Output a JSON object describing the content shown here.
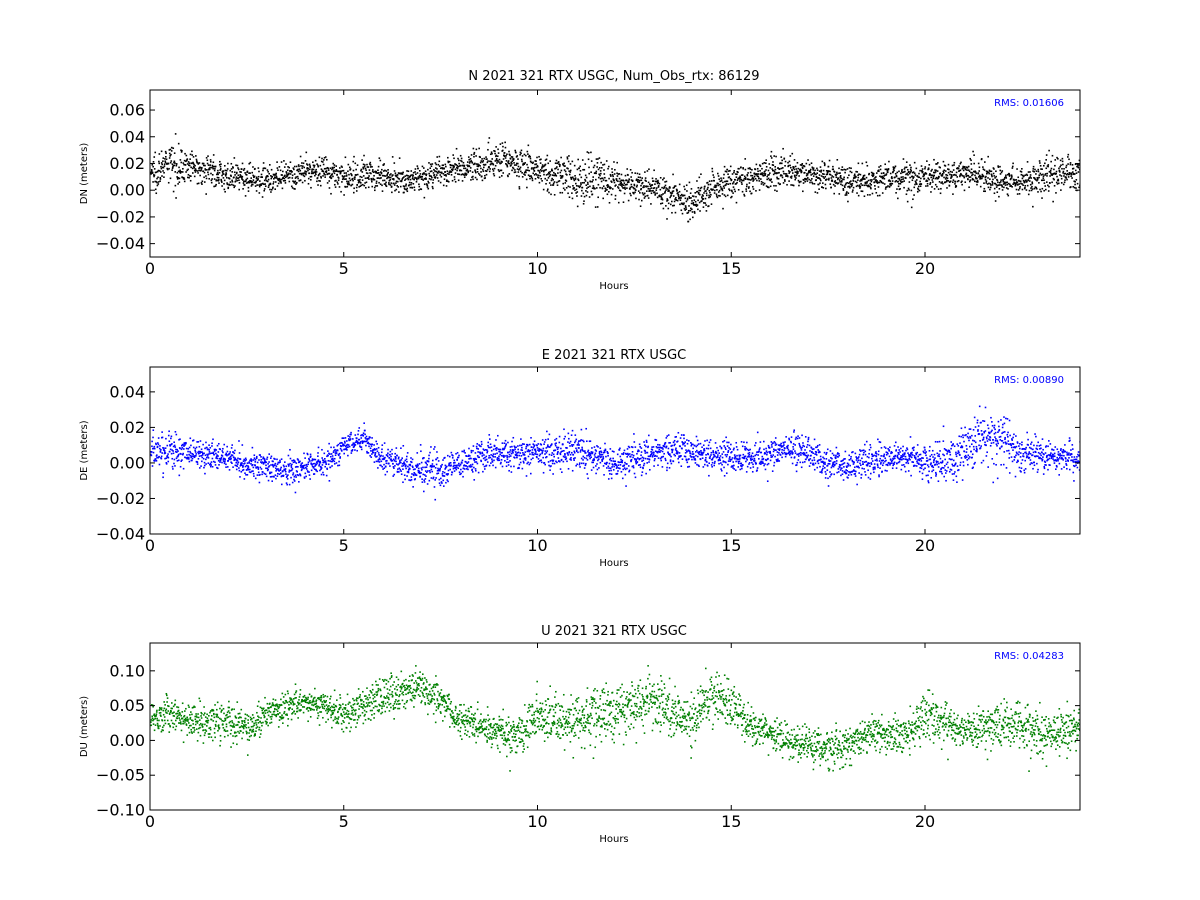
{
  "chart_data": [
    {
      "type": "scatter",
      "title": "N 2021 321 RTX  USGC, Num_Obs_rtx: 86129",
      "xlabel": "Hours",
      "ylabel": "DN (meters)",
      "xlim": [
        0,
        24
      ],
      "ylim": [
        -0.05,
        0.075
      ],
      "xticks": [
        0,
        5,
        10,
        15,
        20
      ],
      "yticks": [
        -0.04,
        -0.02,
        0.0,
        0.02,
        0.04,
        0.06
      ],
      "ytick_labels": [
        "−0.04",
        "−0.02",
        "0.00",
        "0.02",
        "0.04",
        "0.06"
      ],
      "annotation": "RMS:  0.01606",
      "color": "#000000",
      "series": [
        {
          "x": [
            0,
            0.5,
            1,
            1.5,
            2,
            2.5,
            3,
            3.5,
            4,
            4.5,
            5,
            5.5,
            6,
            6.5,
            7,
            7.5,
            8,
            8.5,
            9,
            9.5,
            10,
            10.5,
            11,
            11.5,
            12,
            12.5,
            13,
            13.5,
            14,
            14.5,
            15,
            15.5,
            16,
            16.5,
            17,
            17.5,
            18,
            18.5,
            19,
            19.5,
            20,
            20.5,
            21,
            21.5,
            22,
            22.5,
            23,
            23.5,
            24
          ],
          "y": [
            0.014,
            0.02,
            0.018,
            0.016,
            0.01,
            0.01,
            0.009,
            0.01,
            0.014,
            0.016,
            0.009,
            0.012,
            0.012,
            0.008,
            0.01,
            0.014,
            0.016,
            0.02,
            0.024,
            0.02,
            0.016,
            0.012,
            0.008,
            0.01,
            0.006,
            0.004,
            0.002,
            -0.004,
            -0.008,
            0.002,
            0.008,
            0.01,
            0.014,
            0.014,
            0.012,
            0.01,
            0.008,
            0.006,
            0.01,
            0.008,
            0.01,
            0.012,
            0.014,
            0.01,
            0.008,
            0.006,
            0.012,
            0.014,
            0.012
          ],
          "spread": [
            0.012,
            0.014,
            0.01,
            0.01,
            0.009,
            0.009,
            0.009,
            0.009,
            0.01,
            0.01,
            0.01,
            0.01,
            0.01,
            0.009,
            0.009,
            0.01,
            0.01,
            0.012,
            0.012,
            0.012,
            0.012,
            0.013,
            0.018,
            0.016,
            0.012,
            0.011,
            0.011,
            0.012,
            0.012,
            0.011,
            0.011,
            0.01,
            0.011,
            0.011,
            0.01,
            0.01,
            0.011,
            0.011,
            0.013,
            0.012,
            0.012,
            0.01,
            0.011,
            0.011,
            0.01,
            0.01,
            0.013,
            0.013,
            0.012
          ]
        }
      ]
    },
    {
      "type": "scatter",
      "title": "E 2021 321 RTX  USGC",
      "xlabel": "Hours",
      "ylabel": "DE (meters)",
      "xlim": [
        0,
        24
      ],
      "ylim": [
        -0.04,
        0.054
      ],
      "xticks": [
        0,
        5,
        10,
        15,
        20
      ],
      "yticks": [
        -0.04,
        -0.02,
        0.0,
        0.02,
        0.04
      ],
      "ytick_labels": [
        "−0.04",
        "−0.02",
        "0.00",
        "0.02",
        "0.04"
      ],
      "annotation": "RMS:  0.00890",
      "color": "#0000ff",
      "series": [
        {
          "x": [
            0,
            0.5,
            1,
            1.5,
            2,
            2.5,
            3,
            3.5,
            4,
            4.5,
            5,
            5.5,
            6,
            6.5,
            7,
            7.5,
            8,
            8.5,
            9,
            9.5,
            10,
            10.5,
            11,
            11.5,
            12,
            12.5,
            13,
            13.5,
            14,
            14.5,
            15,
            15.5,
            16,
            16.5,
            17,
            17.5,
            18,
            18.5,
            19,
            19.5,
            20,
            20.5,
            21,
            21.5,
            22,
            22.5,
            23,
            23.5,
            24
          ],
          "y": [
            0.006,
            0.008,
            0.006,
            0.004,
            0.004,
            0.0,
            -0.002,
            -0.004,
            -0.002,
            0.0,
            0.01,
            0.014,
            0.002,
            0.0,
            -0.004,
            -0.004,
            0.0,
            0.004,
            0.006,
            0.006,
            0.006,
            0.006,
            0.008,
            0.004,
            0.0,
            0.002,
            0.006,
            0.01,
            0.006,
            0.004,
            0.004,
            0.004,
            0.006,
            0.008,
            0.006,
            0.0,
            -0.002,
            0.0,
            0.002,
            0.004,
            0.0,
            0.002,
            0.006,
            0.016,
            0.012,
            0.006,
            0.004,
            0.004,
            0.002
          ],
          "spread": [
            0.009,
            0.009,
            0.009,
            0.008,
            0.008,
            0.007,
            0.007,
            0.008,
            0.007,
            0.007,
            0.006,
            0.006,
            0.007,
            0.008,
            0.009,
            0.009,
            0.008,
            0.008,
            0.009,
            0.008,
            0.008,
            0.008,
            0.01,
            0.009,
            0.008,
            0.008,
            0.008,
            0.009,
            0.008,
            0.008,
            0.008,
            0.008,
            0.008,
            0.008,
            0.008,
            0.008,
            0.008,
            0.008,
            0.007,
            0.007,
            0.009,
            0.01,
            0.012,
            0.016,
            0.012,
            0.009,
            0.008,
            0.007,
            0.007
          ]
        }
      ]
    },
    {
      "type": "scatter",
      "title": "U 2021 321 RTX  USGC",
      "xlabel": "Hours",
      "ylabel": "DU (meters)",
      "xlim": [
        0,
        24
      ],
      "ylim": [
        -0.1,
        0.14
      ],
      "xticks": [
        0,
        5,
        10,
        15,
        20
      ],
      "yticks": [
        -0.1,
        -0.05,
        0.0,
        0.05,
        0.1
      ],
      "ytick_labels": [
        "−0.10",
        "−0.05",
        "0.00",
        "0.05",
        "0.10"
      ],
      "annotation": "RMS:  0.04283",
      "color": "#008000",
      "series": [
        {
          "x": [
            0,
            0.5,
            1,
            1.5,
            2,
            2.5,
            3,
            3.5,
            4,
            4.5,
            5,
            5.5,
            6,
            6.5,
            7,
            7.5,
            8,
            8.5,
            9,
            9.5,
            10,
            10.5,
            11,
            11.5,
            12,
            12.5,
            13,
            13.5,
            14,
            14.5,
            15,
            15.5,
            16,
            16.5,
            17,
            17.5,
            18,
            18.5,
            19,
            19.5,
            20,
            20.5,
            21,
            21.5,
            22,
            22.5,
            23,
            23.5,
            24
          ],
          "y": [
            0.035,
            0.04,
            0.03,
            0.025,
            0.03,
            0.02,
            0.04,
            0.05,
            0.055,
            0.05,
            0.04,
            0.05,
            0.06,
            0.07,
            0.08,
            0.06,
            0.03,
            0.025,
            0.01,
            0.01,
            0.035,
            0.03,
            0.025,
            0.04,
            0.04,
            0.05,
            0.06,
            0.04,
            0.03,
            0.07,
            0.05,
            0.02,
            0.01,
            0.0,
            -0.005,
            -0.01,
            -0.005,
            0.01,
            0.01,
            0.005,
            0.04,
            0.025,
            0.015,
            0.02,
            0.025,
            0.02,
            0.01,
            0.015,
            0.02
          ],
          "spread": [
            0.022,
            0.022,
            0.022,
            0.025,
            0.025,
            0.022,
            0.02,
            0.018,
            0.018,
            0.018,
            0.022,
            0.025,
            0.028,
            0.025,
            0.025,
            0.025,
            0.02,
            0.02,
            0.025,
            0.028,
            0.03,
            0.03,
            0.035,
            0.038,
            0.038,
            0.035,
            0.032,
            0.03,
            0.03,
            0.032,
            0.03,
            0.025,
            0.022,
            0.022,
            0.022,
            0.025,
            0.025,
            0.025,
            0.022,
            0.025,
            0.028,
            0.025,
            0.022,
            0.025,
            0.03,
            0.03,
            0.032,
            0.028,
            0.025
          ]
        }
      ]
    }
  ]
}
